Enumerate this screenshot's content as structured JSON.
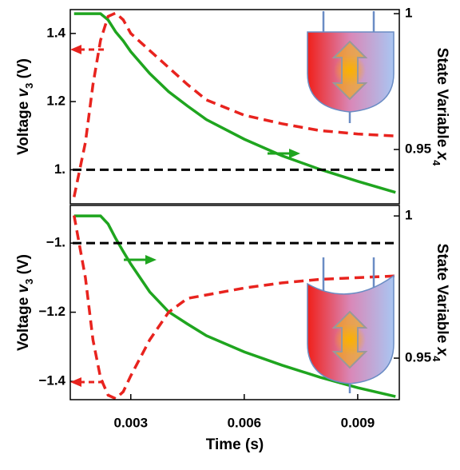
{
  "chart_data": [
    {
      "type": "line",
      "ylabel": [
        "Voltage ",
        "v",
        "3",
        " (V)"
      ],
      "y2label": [
        "State Variable ",
        "x",
        "4"
      ],
      "x": [
        0.0015,
        0.0018,
        0.002,
        0.0022,
        0.0024,
        0.0026,
        0.0028,
        0.003,
        0.0035,
        0.004,
        0.0045,
        0.005,
        0.006,
        0.007,
        0.008,
        0.009,
        0.01
      ],
      "xlim": [
        0.0014,
        0.0101
      ],
      "ylim": [
        0.9,
        1.47
      ],
      "yticks": [
        {
          "value": 1,
          "label": "1."
        },
        1.2,
        1.4
      ],
      "y2lim": [
        0.93,
        1.0015
      ],
      "y2ticks": [
        0.95,
        1
      ],
      "series": [
        {
          "color": "#e8231e",
          "style": "dashed",
          "values": [
            0.92,
            1.08,
            1.25,
            1.38,
            1.45,
            1.46,
            1.44,
            1.4,
            1.35,
            1.3,
            1.25,
            1.205,
            1.16,
            1.135,
            1.115,
            1.105,
            1.099
          ]
        },
        {
          "color": "#1fa51f",
          "style": "solid",
          "axis": "y2",
          "values": [
            1.0,
            1.0,
            1.0,
            1.0,
            0.9977,
            0.9933,
            0.99,
            0.986,
            0.978,
            0.9713,
            0.966,
            0.961,
            0.9538,
            0.9477,
            0.9427,
            0.9383,
            0.9342
          ]
        }
      ],
      "hlines": [
        {
          "value": 1,
          "color": "#000000"
        }
      ]
    },
    {
      "type": "line",
      "ylabel": [
        "Voltage ",
        "v",
        "3",
        " (V)"
      ],
      "y2label": [
        "State Variable ",
        "x",
        "4"
      ],
      "xlabel": "Time (s)",
      "x": [
        0.0015,
        0.0018,
        0.002,
        0.0022,
        0.0024,
        0.0026,
        0.0028,
        0.003,
        0.0035,
        0.004,
        0.0045,
        0.005,
        0.006,
        0.007,
        0.008,
        0.009,
        0.01
      ],
      "xlim": [
        0.0014,
        0.0101
      ],
      "xticks": [
        0.003,
        0.006,
        0.009
      ],
      "ylim": [
        -1.453,
        -0.891
      ],
      "yticks": [
        {
          "value": -1.4,
          "label": "−1.4"
        },
        {
          "value": -1.2,
          "label": "−1.2"
        },
        {
          "value": -1,
          "label": "−1."
        }
      ],
      "y2lim": [
        0.9354,
        1.0037
      ],
      "y2ticks": [
        0.95,
        1
      ],
      "series": [
        {
          "color": "#e8231e",
          "style": "dashed",
          "values": [
            -0.92,
            -1.1,
            -1.28,
            -1.39,
            -1.44,
            -1.45,
            -1.43,
            -1.384,
            -1.28,
            -1.2,
            -1.16,
            -1.15,
            -1.13,
            -1.115,
            -1.105,
            -1.1,
            -1.095
          ]
        },
        {
          "color": "#1fa51f",
          "style": "solid",
          "axis": "y2",
          "values": [
            1.0,
            1.0,
            1.0,
            1.0,
            0.9972,
            0.9921,
            0.9875,
            0.9831,
            0.9733,
            0.9663,
            0.962,
            0.9579,
            0.9522,
            0.9475,
            0.9433,
            0.9396,
            0.9365
          ]
        }
      ],
      "hlines": [
        {
          "value": -1,
          "color": "#000000"
        }
      ]
    }
  ]
}
